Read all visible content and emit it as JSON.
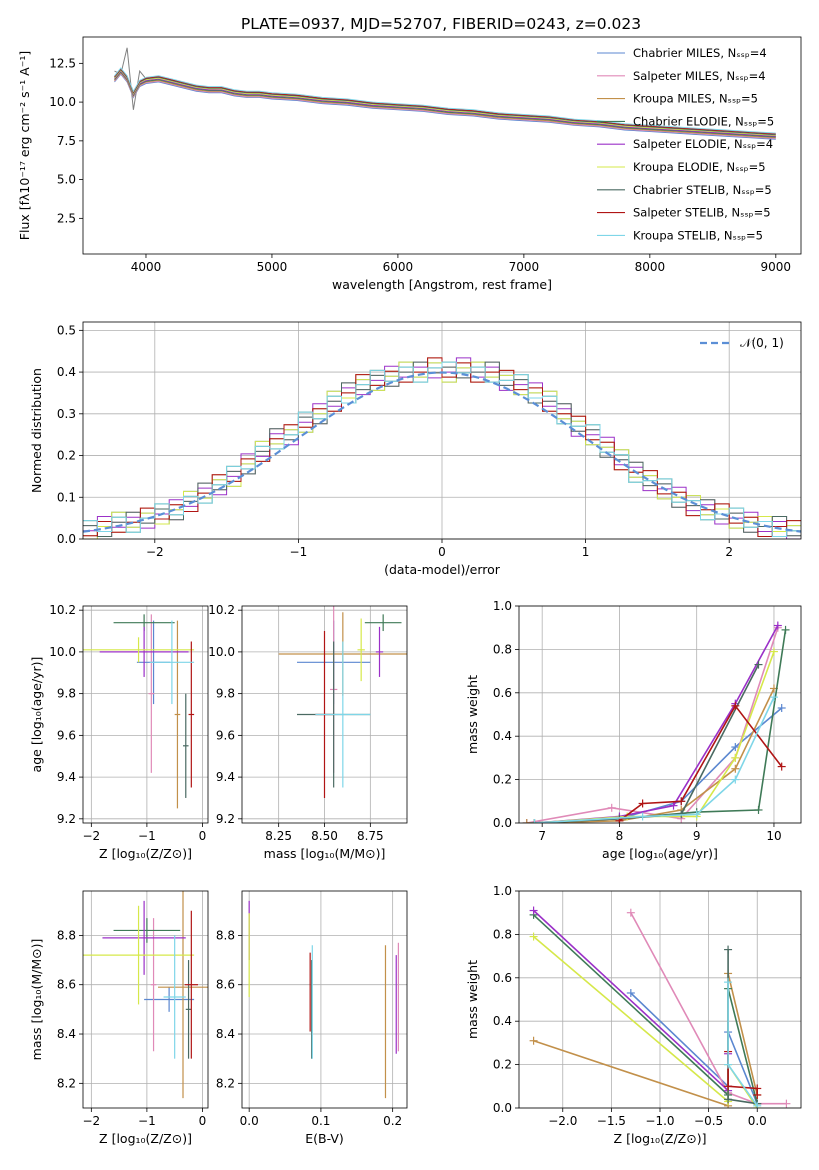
{
  "figure_title": "PLATE=0937, MJD=52707, FIBERID=0243, z=0.023",
  "colors": {
    "Chabrier MILES": "#5b87d0",
    "Salpeter MILES": "#e08ab8",
    "Kroupa MILES": "#c2904a",
    "Chabrier ELODIE": "#3f7a57",
    "Salpeter ELODIE": "#9b30c8",
    "Kroupa ELODIE": "#d6e84a",
    "Chabrier STELIB": "#4a6a62",
    "Salpeter STELIB": "#b01515",
    "Kroupa STELIB": "#7fd6e8"
  },
  "chart_data": [
    {
      "type": "line",
      "title": "PLATE=0937, MJD=52707, FIBERID=0243, z=0.023",
      "xlabel": "wavelength [Angstrom, rest frame]",
      "ylabel": "Flux [fλ10⁻¹⁷ erg cm⁻² s⁻¹ A⁻¹]",
      "xlim": [
        3500,
        9200
      ],
      "ylim": [
        0.2,
        14.2
      ],
      "xticks": [
        4000,
        5000,
        6000,
        7000,
        8000,
        9000
      ],
      "yticks": [
        2.5,
        5.0,
        7.5,
        10.0,
        12.5
      ],
      "legend_position": "top-right",
      "legend": [
        "Chabrier MILES, Nₛₛₚ=4",
        "Salpeter MILES, Nₛₛₚ=4",
        "Kroupa MILES, Nₛₛₚ=5",
        "Chabrier ELODIE, Nₛₛₚ=5",
        "Salpeter ELODIE, Nₛₛₚ=4",
        "Kroupa ELODIE, Nₛₛₚ=5",
        "Chabrier STELIB, Nₛₛₚ=5",
        "Salpeter STELIB, Nₛₛₚ=5",
        "Kroupa STELIB, Nₛₛₚ=5"
      ],
      "data_color": "#808080",
      "data_x": [
        3750,
        3800,
        3850,
        3900,
        3950,
        4000,
        4100,
        4200,
        4300,
        4400,
        4500,
        4600,
        4700,
        4800,
        4900,
        5000,
        5200,
        5400,
        5600,
        5800,
        6000,
        6200,
        6400,
        6600,
        6800,
        7000,
        7200,
        7400,
        7600,
        7800,
        8000,
        8200,
        8400,
        8600,
        8800,
        9000
      ],
      "data_y": [
        12.0,
        11.8,
        13.5,
        9.5,
        12.0,
        11.5,
        11.6,
        11.3,
        11.2,
        11.0,
        10.8,
        10.9,
        10.7,
        10.5,
        10.6,
        10.5,
        10.4,
        10.2,
        10.1,
        9.9,
        9.8,
        9.6,
        9.5,
        9.3,
        9.1,
        9.0,
        8.9,
        8.8,
        8.6,
        8.4,
        8.3,
        8.2,
        8.1,
        8.0,
        7.9,
        7.8
      ],
      "model_x": [
        3750,
        3800,
        3850,
        3900,
        3950,
        4000,
        4100,
        4200,
        4300,
        4400,
        4500,
        4600,
        4700,
        4800,
        4900,
        5000,
        5200,
        5400,
        5600,
        5800,
        6000,
        6200,
        6400,
        6600,
        6800,
        7000,
        7200,
        7400,
        7600,
        7800,
        8000,
        8200,
        8400,
        8600,
        8800,
        9000
      ],
      "model_y": [
        11.5,
        12.0,
        11.5,
        10.5,
        11.2,
        11.4,
        11.5,
        11.3,
        11.1,
        10.9,
        10.8,
        10.8,
        10.6,
        10.5,
        10.5,
        10.4,
        10.3,
        10.1,
        10.0,
        9.8,
        9.7,
        9.6,
        9.4,
        9.3,
        9.1,
        9.0,
        8.9,
        8.7,
        8.6,
        8.4,
        8.3,
        8.2,
        8.1,
        8.0,
        7.9,
        7.8
      ]
    },
    {
      "type": "bar",
      "xlabel": "(data-model)/error",
      "ylabel": "Normed distribution",
      "xlim": [
        -2.5,
        2.5
      ],
      "ylim": [
        0,
        0.52
      ],
      "xticks": [
        -2,
        -1,
        0,
        1,
        2
      ],
      "yticks": [
        0.0,
        0.1,
        0.2,
        0.3,
        0.4,
        0.5
      ],
      "legend": [
        "𝒩(0, 1)"
      ],
      "legend_position": "top-right",
      "bin_start": -2.5,
      "bin_width": 0.1,
      "histogram": [
        0.02,
        0.03,
        0.04,
        0.04,
        0.05,
        0.06,
        0.07,
        0.09,
        0.11,
        0.13,
        0.15,
        0.18,
        0.21,
        0.24,
        0.25,
        0.28,
        0.3,
        0.33,
        0.35,
        0.37,
        0.38,
        0.39,
        0.4,
        0.4,
        0.41,
        0.4,
        0.41,
        0.4,
        0.4,
        0.38,
        0.37,
        0.35,
        0.33,
        0.3,
        0.27,
        0.25,
        0.22,
        0.19,
        0.16,
        0.14,
        0.12,
        0.1,
        0.08,
        0.07,
        0.06,
        0.05,
        0.04,
        0.03,
        0.03,
        0.02
      ]
    },
    {
      "type": "scatter",
      "xlabel": "Z [log₁₀(Z/Z⊙)]",
      "ylabel": "age  [log₁₀(age/yr)]",
      "xlim": [
        -2.15,
        0.1
      ],
      "ylim": [
        9.18,
        10.22
      ],
      "xticks": [
        -2,
        -1,
        0
      ],
      "yticks": [
        9.2,
        9.4,
        9.6,
        9.8,
        10.0,
        10.2
      ],
      "points": [
        {
          "name": "Chabrier MILES",
          "x": -0.88,
          "xerr": 0.3,
          "y": 9.95,
          "yerr": 0.2
        },
        {
          "name": "Salpeter MILES",
          "x": -0.92,
          "xerr": 0.05,
          "y": 9.8,
          "yerr": 0.38
        },
        {
          "name": "Kroupa MILES",
          "x": -0.45,
          "xerr": 0.05,
          "y": 9.7,
          "yerr": 0.45
        },
        {
          "name": "Chabrier ELODIE",
          "x": -1.05,
          "xerr": 0.55,
          "y": 10.14,
          "yerr": 0.04
        },
        {
          "name": "Salpeter ELODIE",
          "x": -1.05,
          "xerr": 0.8,
          "y": 10.0,
          "yerr": 0.12
        },
        {
          "name": "Kroupa ELODIE",
          "x": -1.15,
          "xerr": 1.0,
          "y": 10.01,
          "yerr": 0.06
        },
        {
          "name": "Chabrier STELIB",
          "x": -0.3,
          "xerr": 0.05,
          "y": 9.55,
          "yerr": 0.25
        },
        {
          "name": "Salpeter STELIB",
          "x": -0.2,
          "xerr": 0.05,
          "y": 9.7,
          "yerr": 0.35
        },
        {
          "name": "Kroupa STELIB",
          "x": -0.55,
          "xerr": 0.4,
          "y": 9.95,
          "yerr": 0.2
        }
      ]
    },
    {
      "type": "scatter",
      "xlabel": "mass [log₁₀(M/M⊙)]",
      "xlim": [
        8.05,
        8.95
      ],
      "ylim": [
        9.18,
        10.22
      ],
      "xticks": [
        8.25,
        8.5,
        8.75
      ],
      "yticks": [
        9.2,
        9.4,
        9.6,
        9.8,
        10.0,
        10.2
      ],
      "points": [
        {
          "name": "Chabrier MILES",
          "x": 8.55,
          "xerr": 0.2,
          "y": 9.95,
          "yerr": 0.2
        },
        {
          "name": "Salpeter MILES",
          "x": 8.55,
          "xerr": 0.02,
          "y": 9.82,
          "yerr": 0.4
        },
        {
          "name": "Kroupa MILES",
          "x": 8.6,
          "xerr": 0.35,
          "y": 9.99,
          "yerr": 0.2
        },
        {
          "name": "Chabrier ELODIE",
          "x": 8.82,
          "xerr": 0.1,
          "y": 10.14,
          "yerr": 0.04
        },
        {
          "name": "Salpeter ELODIE",
          "x": 8.8,
          "xerr": 0.02,
          "y": 10.0,
          "yerr": 0.12
        },
        {
          "name": "Kroupa ELODIE",
          "x": 8.7,
          "xerr": 0.02,
          "y": 10.01,
          "yerr": 0.15
        },
        {
          "name": "Chabrier STELIB",
          "x": 8.55,
          "xerr": 0.2,
          "y": 9.7,
          "yerr": 0.35
        },
        {
          "name": "Salpeter STELIB",
          "x": 8.5,
          "xerr": 0.05,
          "y": 9.7,
          "yerr": 0.4
        },
        {
          "name": "Kroupa STELIB",
          "x": 8.6,
          "xerr": 0.15,
          "y": 9.7,
          "yerr": 0.35
        }
      ]
    },
    {
      "type": "line",
      "xlabel": "age  [log₁₀(age/yr)]",
      "ylabel": "mass weight",
      "xlim": [
        6.7,
        10.35
      ],
      "ylim": [
        0,
        1.0
      ],
      "xticks": [
        7,
        8,
        9,
        10
      ],
      "yticks": [
        0.0,
        0.2,
        0.4,
        0.6,
        0.8,
        1.0
      ],
      "series": [
        {
          "name": "Chabrier MILES",
          "x": [
            6.8,
            8.0,
            8.8,
            9.5,
            10.1
          ],
          "y": [
            0.0,
            0.02,
            0.1,
            0.35,
            0.53
          ]
        },
        {
          "name": "Salpeter MILES",
          "x": [
            6.8,
            7.9,
            8.8,
            9.5,
            10.05
          ],
          "y": [
            0.0,
            0.07,
            0.02,
            0.3,
            0.9
          ]
        },
        {
          "name": "Kroupa MILES",
          "x": [
            6.8,
            8.0,
            8.8,
            9.5,
            10.0
          ],
          "y": [
            0.0,
            0.01,
            0.06,
            0.25,
            0.62
          ]
        },
        {
          "name": "Chabrier ELODIE",
          "x": [
            6.9,
            8.0,
            9.0,
            9.8,
            10.15
          ],
          "y": [
            0.0,
            0.02,
            0.05,
            0.06,
            0.89
          ]
        },
        {
          "name": "Salpeter ELODIE",
          "x": [
            6.9,
            8.0,
            8.7,
            9.5,
            10.05
          ],
          "y": [
            0.0,
            0.03,
            0.08,
            0.55,
            0.91
          ]
        },
        {
          "name": "Kroupa ELODIE",
          "x": [
            6.9,
            8.1,
            9.0,
            9.5,
            10.0
          ],
          "y": [
            0.0,
            0.03,
            0.03,
            0.3,
            0.79
          ]
        },
        {
          "name": "Chabrier STELIB",
          "x": [
            6.9,
            8.0,
            8.8,
            9.8
          ],
          "y": [
            0.0,
            0.02,
            0.04,
            0.73
          ]
        },
        {
          "name": "Salpeter STELIB",
          "x": [
            8.0,
            8.3,
            8.8,
            9.5,
            10.1
          ],
          "y": [
            0.01,
            0.09,
            0.1,
            0.54,
            0.26
          ]
        },
        {
          "name": "Kroupa STELIB",
          "x": [
            6.9,
            8.3,
            9.0,
            9.5,
            10.0
          ],
          "y": [
            0.0,
            0.03,
            0.04,
            0.2,
            0.58
          ]
        }
      ]
    },
    {
      "type": "scatter",
      "xlabel": "Z [log₁₀(Z/Z⊙)]",
      "ylabel": "mass [log₁₀(M/M⊙)]",
      "xlim": [
        -2.15,
        0.1
      ],
      "ylim": [
        8.1,
        8.98
      ],
      "xticks": [
        -2,
        -1,
        0
      ],
      "yticks": [
        8.2,
        8.4,
        8.6,
        8.8
      ],
      "points": [
        {
          "name": "Chabrier MILES",
          "x": -0.6,
          "xerr": 0.45,
          "y": 8.54,
          "yerr": 0.05
        },
        {
          "name": "Salpeter MILES",
          "x": -0.88,
          "xerr": 0.05,
          "y": 8.6,
          "yerr": 0.27
        },
        {
          "name": "Kroupa MILES",
          "x": -0.35,
          "xerr": 0.45,
          "y": 8.59,
          "yerr": 0.45
        },
        {
          "name": "Chabrier ELODIE",
          "x": -1.0,
          "xerr": 0.6,
          "y": 8.82,
          "yerr": 0.05
        },
        {
          "name": "Salpeter ELODIE",
          "x": -1.05,
          "xerr": 0.75,
          "y": 8.79,
          "yerr": 0.15
        },
        {
          "name": "Kroupa ELODIE",
          "x": -1.15,
          "xerr": 1.0,
          "y": 8.72,
          "yerr": 0.2
        },
        {
          "name": "Chabrier STELIB",
          "x": -0.25,
          "xerr": 0.05,
          "y": 8.5,
          "yerr": 0.2
        },
        {
          "name": "Salpeter STELIB",
          "x": -0.2,
          "xerr": 0.12,
          "y": 8.6,
          "yerr": 0.3
        },
        {
          "name": "Kroupa STELIB",
          "x": -0.5,
          "xerr": 0.2,
          "y": 8.55,
          "yerr": 0.25
        }
      ]
    },
    {
      "type": "scatter",
      "xlabel": "E(B-V)",
      "xlim": [
        -0.01,
        0.22
      ],
      "ylim": [
        8.1,
        8.98
      ],
      "xticks": [
        0.0,
        0.1,
        0.2
      ],
      "yticks": [
        8.2,
        8.4,
        8.6,
        8.8
      ],
      "points": [
        {
          "name": "Salpeter ELODIE",
          "x": 0.0,
          "xerr": 0,
          "y": 8.82,
          "yerr": 0.12
        },
        {
          "name": "Kroupa ELODIE",
          "x": 0.0,
          "xerr": 0,
          "y": 8.72,
          "yerr": 0.17
        },
        {
          "name": "Salpeter STELIB",
          "x": 0.085,
          "xerr": 0,
          "y": 8.57,
          "yerr": 0.16
        },
        {
          "name": "Chabrier STELIB",
          "x": 0.087,
          "xerr": 0,
          "y": 8.5,
          "yerr": 0.2
        },
        {
          "name": "Kroupa STELIB",
          "x": 0.088,
          "xerr": 0,
          "y": 8.53,
          "yerr": 0.23
        },
        {
          "name": "Kroupa MILES",
          "x": 0.19,
          "xerr": 0,
          "y": 8.45,
          "yerr": 0.31
        },
        {
          "name": "Salpeter ELODIE",
          "x": 0.205,
          "xerr": 0,
          "y": 8.52,
          "yerr": 0.2
        },
        {
          "name": "Salpeter MILES",
          "x": 0.208,
          "xerr": 0,
          "y": 8.55,
          "yerr": 0.22
        }
      ]
    },
    {
      "type": "line",
      "xlabel": "Z [log₁₀(Z/Z⊙)]",
      "ylabel": "mass weight",
      "xlim": [
        -2.45,
        0.45
      ],
      "ylim": [
        0,
        1.0
      ],
      "xticks": [
        -2.0,
        -1.5,
        -1.0,
        -0.5,
        0.0
      ],
      "yticks": [
        0.0,
        0.2,
        0.4,
        0.6,
        0.8,
        1.0
      ],
      "series": [
        {
          "name": "Chabrier MILES",
          "x": [
            -1.3,
            -0.3,
            -0.3,
            0.0
          ],
          "y": [
            0.53,
            0.1,
            0.35,
            0.02
          ]
        },
        {
          "name": "Salpeter MILES",
          "x": [
            -1.3,
            -0.3,
            0.0,
            0.3
          ],
          "y": [
            0.9,
            0.07,
            0.02,
            0.02
          ]
        },
        {
          "name": "Kroupa MILES",
          "x": [
            -2.3,
            -0.3,
            -0.3,
            0.0
          ],
          "y": [
            0.31,
            0.01,
            0.62,
            0.06
          ]
        },
        {
          "name": "Chabrier ELODIE",
          "x": [
            -2.3,
            -0.3,
            -0.3,
            0.0
          ],
          "y": [
            0.89,
            0.06,
            0.55,
            0.02
          ]
        },
        {
          "name": "Salpeter ELODIE",
          "x": [
            -2.3,
            -0.3,
            -0.3
          ],
          "y": [
            0.91,
            0.08,
            0.25
          ]
        },
        {
          "name": "Kroupa ELODIE",
          "x": [
            -2.3,
            -0.3,
            -0.3,
            0.0
          ],
          "y": [
            0.79,
            0.03,
            0.2,
            0.0
          ]
        },
        {
          "name": "Chabrier STELIB",
          "x": [
            -0.3,
            -0.3,
            0.0
          ],
          "y": [
            0.73,
            0.04,
            0.02
          ]
        },
        {
          "name": "Salpeter STELIB",
          "x": [
            -0.3,
            -0.3,
            0.0,
            0.0
          ],
          "y": [
            0.26,
            0.1,
            0.09,
            0.06
          ]
        },
        {
          "name": "Kroupa STELIB",
          "x": [
            -0.3,
            -0.3,
            0.0
          ],
          "y": [
            0.58,
            0.2,
            0.01
          ]
        }
      ]
    }
  ]
}
